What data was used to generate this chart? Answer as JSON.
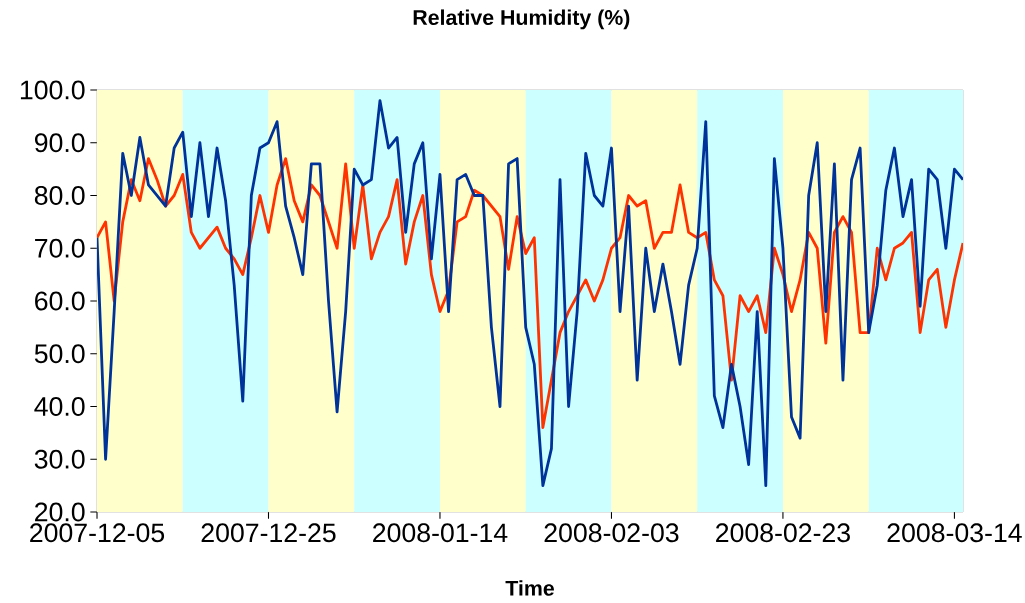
{
  "chart_data": {
    "type": "line",
    "title": "Relative Humidity (%)",
    "xlabel": "Time",
    "x": [
      "2007-12-05",
      "2007-12-06",
      "2007-12-07",
      "2007-12-08",
      "2007-12-09",
      "2007-12-10",
      "2007-12-11",
      "2007-12-12",
      "2007-12-13",
      "2007-12-14",
      "2007-12-15",
      "2007-12-16",
      "2007-12-17",
      "2007-12-18",
      "2007-12-19",
      "2007-12-20",
      "2007-12-21",
      "2007-12-22",
      "2007-12-23",
      "2007-12-24",
      "2007-12-25",
      "2007-12-26",
      "2007-12-27",
      "2007-12-28",
      "2007-12-29",
      "2007-12-30",
      "2007-12-31",
      "2008-01-01",
      "2008-01-02",
      "2008-01-03",
      "2008-01-04",
      "2008-01-05",
      "2008-01-06",
      "2008-01-07",
      "2008-01-08",
      "2008-01-09",
      "2008-01-10",
      "2008-01-11",
      "2008-01-12",
      "2008-01-13",
      "2008-01-14",
      "2008-01-15",
      "2008-01-16",
      "2008-01-17",
      "2008-01-18",
      "2008-01-19",
      "2008-01-20",
      "2008-01-21",
      "2008-01-22",
      "2008-01-23",
      "2008-01-24",
      "2008-01-25",
      "2008-01-26",
      "2008-01-27",
      "2008-01-28",
      "2008-01-29",
      "2008-01-30",
      "2008-01-31",
      "2008-02-01",
      "2008-02-02",
      "2008-02-03",
      "2008-02-04",
      "2008-02-05",
      "2008-02-06",
      "2008-02-07",
      "2008-02-08",
      "2008-02-09",
      "2008-02-10",
      "2008-02-11",
      "2008-02-12",
      "2008-02-13",
      "2008-02-14",
      "2008-02-15",
      "2008-02-16",
      "2008-02-17",
      "2008-02-18",
      "2008-02-19",
      "2008-02-20",
      "2008-02-21",
      "2008-02-22",
      "2008-02-23",
      "2008-02-24",
      "2008-02-25",
      "2008-02-26",
      "2008-02-27",
      "2008-02-28",
      "2008-02-29",
      "2008-03-01",
      "2008-03-02",
      "2008-03-03",
      "2008-03-04",
      "2008-03-05",
      "2008-03-06",
      "2008-03-07",
      "2008-03-08",
      "2008-03-09",
      "2008-03-10",
      "2008-03-11",
      "2008-03-12",
      "2008-03-13",
      "2008-03-14",
      "2008-03-15"
    ],
    "series": [
      {
        "color": "#ff3300",
        "values": [
          72,
          75,
          60,
          75,
          83,
          79,
          87,
          83,
          78,
          80,
          84,
          73,
          70,
          72,
          74,
          70,
          68,
          65,
          72,
          80,
          73,
          82,
          87,
          79,
          75,
          82,
          80,
          75,
          70,
          86,
          70,
          82,
          68,
          73,
          76,
          83,
          67,
          75,
          80,
          65,
          58,
          62,
          75,
          76,
          81,
          80,
          78,
          76,
          66,
          76,
          69,
          72,
          36,
          45,
          54,
          58,
          61,
          64,
          60,
          64,
          70,
          72,
          80,
          78,
          79,
          70,
          73,
          73,
          82,
          73,
          72,
          73,
          64,
          61,
          45,
          61,
          58,
          61,
          54,
          70,
          65,
          58,
          64,
          73,
          70,
          52,
          73,
          76,
          73,
          54,
          54,
          70,
          64,
          70,
          71,
          73,
          54,
          64,
          66,
          55,
          64,
          71
        ]
      },
      {
        "color": "#003399",
        "values": [
          72,
          30,
          58,
          88,
          80,
          91,
          82,
          80,
          78,
          89,
          92,
          76,
          90,
          76,
          89,
          79,
          63,
          41,
          80,
          89,
          90,
          94,
          78,
          72,
          65,
          86,
          86,
          60,
          39,
          58,
          85,
          82,
          83,
          98,
          89,
          91,
          73,
          86,
          90,
          68,
          84,
          58,
          83,
          84,
          80,
          80,
          55,
          40,
          86,
          87,
          55,
          48,
          25,
          32,
          83,
          40,
          58,
          88,
          80,
          78,
          89,
          58,
          78,
          45,
          70,
          58,
          67,
          58,
          48,
          63,
          70,
          94,
          42,
          36,
          48,
          40,
          29,
          58,
          25,
          87,
          70,
          38,
          34,
          80,
          90,
          58,
          86,
          45,
          83,
          89,
          54,
          63,
          81,
          89,
          76,
          83,
          59,
          85,
          83,
          70,
          85,
          83
        ]
      }
    ],
    "xlim": [
      "2007-12-05",
      "2008-03-15"
    ],
    "xticks": [
      "2007-12-05",
      "2007-12-25",
      "2008-01-14",
      "2008-02-03",
      "2008-02-23",
      "2008-03-14"
    ],
    "ylim": [
      20,
      100
    ],
    "yticks": [
      {
        "value": 20,
        "label": "20.0"
      },
      {
        "value": 30,
        "label": "30.0"
      },
      {
        "value": 40,
        "label": "40.0"
      },
      {
        "value": 50,
        "label": "50.0"
      },
      {
        "value": 60,
        "label": "60.0"
      },
      {
        "value": 70,
        "label": "70.0"
      },
      {
        "value": 80,
        "label": "80.0"
      },
      {
        "value": 90,
        "label": "90.0"
      },
      {
        "value": 100,
        "label": "100.0"
      }
    ],
    "bands": [
      {
        "axis": "x",
        "from": "2007-12-05",
        "to": "2007-12-15",
        "color": "#ffffcc"
      },
      {
        "axis": "x",
        "from": "2007-12-15",
        "to": "2007-12-25",
        "color": "#ccffff"
      },
      {
        "axis": "x",
        "from": "2007-12-25",
        "to": "2008-01-04",
        "color": "#ffffcc"
      },
      {
        "axis": "x",
        "from": "2008-01-04",
        "to": "2008-01-14",
        "color": "#ccffff"
      },
      {
        "axis": "x",
        "from": "2008-01-14",
        "to": "2008-01-24",
        "color": "#ffffcc"
      },
      {
        "axis": "x",
        "from": "2008-01-24",
        "to": "2008-02-03",
        "color": "#ccffff"
      },
      {
        "axis": "x",
        "from": "2008-02-03",
        "to": "2008-02-13",
        "color": "#ffffcc"
      },
      {
        "axis": "x",
        "from": "2008-02-13",
        "to": "2008-02-23",
        "color": "#ccffff"
      },
      {
        "axis": "x",
        "from": "2008-02-23",
        "to": "2008-03-04",
        "color": "#ffffcc"
      },
      {
        "axis": "x",
        "from": "2008-03-04",
        "to": "2008-03-15",
        "color": "#ccffff"
      }
    ]
  }
}
